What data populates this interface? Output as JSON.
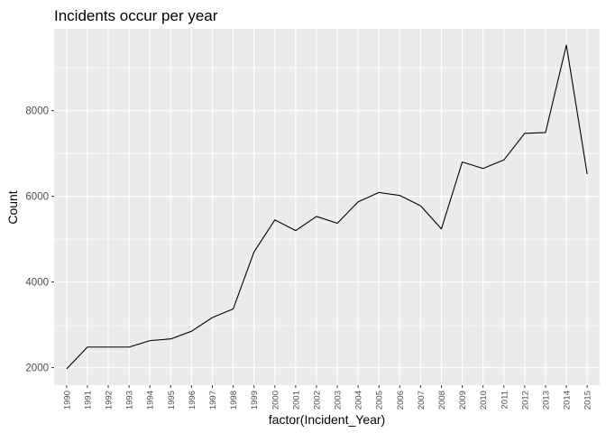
{
  "chart_data": {
    "type": "line",
    "title": "Incidents occur per year",
    "xlabel": "factor(Incident_Year)",
    "ylabel": "Count",
    "categories": [
      "1990",
      "1991",
      "1992",
      "1993",
      "1994",
      "1995",
      "1996",
      "1997",
      "1998",
      "1999",
      "2000",
      "2001",
      "2002",
      "2003",
      "2004",
      "2005",
      "2006",
      "2007",
      "2008",
      "2009",
      "2010",
      "2011",
      "2012",
      "2013",
      "2014",
      "2015"
    ],
    "values": [
      1970,
      2480,
      2480,
      2480,
      2630,
      2670,
      2850,
      3170,
      3370,
      4700,
      5450,
      5200,
      5530,
      5370,
      5870,
      6090,
      6020,
      5780,
      5240,
      6800,
      6650,
      6850,
      7470,
      7490,
      9530,
      6520
    ],
    "yticks": [
      2000,
      4000,
      6000,
      8000
    ],
    "ylim": [
      1590,
      9910
    ],
    "line_color": "#000000",
    "panel_background": "#ebebeb",
    "grid_color": "#ffffff",
    "grid": true,
    "legend": "none"
  }
}
